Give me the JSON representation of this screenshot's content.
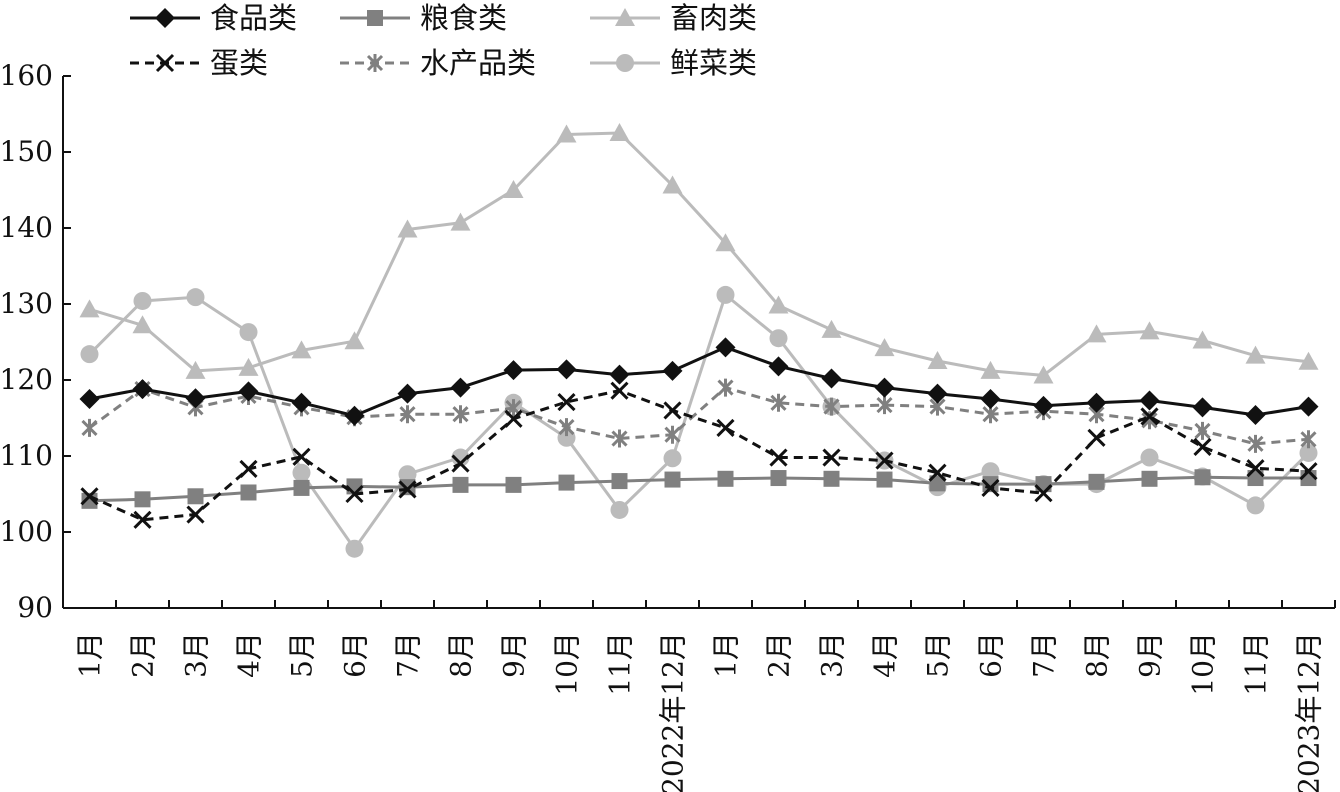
{
  "chart_data": {
    "type": "line",
    "title": "",
    "xlabel": "",
    "ylabel": "",
    "ylim": [
      90,
      160
    ],
    "yticks": [
      90,
      100,
      110,
      120,
      130,
      140,
      150,
      160
    ],
    "grid": false,
    "legend_position": "top-left",
    "categories": [
      "1月",
      "2月",
      "3月",
      "4月",
      "5月",
      "6月",
      "7月",
      "8月",
      "9月",
      "10月",
      "11月",
      "2022年12月",
      "1月",
      "2月",
      "3月",
      "4月",
      "5月",
      "6月",
      "7月",
      "8月",
      "9月",
      "10月",
      "11月",
      "2023年12月"
    ],
    "series": [
      {
        "name": "食品类",
        "color": "#111111",
        "marker": "diamond",
        "dashed": false,
        "values": [
          117.5,
          118.8,
          117.6,
          118.5,
          117.0,
          115.3,
          118.2,
          119.0,
          121.3,
          121.4,
          120.7,
          121.2,
          124.3,
          121.8,
          120.2,
          119.0,
          118.2,
          117.5,
          116.6,
          117.0,
          117.3,
          116.4,
          115.4,
          116.5
        ]
      },
      {
        "name": "粮食类",
        "color": "#808080",
        "marker": "square",
        "dashed": false,
        "values": [
          104.1,
          104.3,
          104.7,
          105.2,
          105.8,
          106.0,
          105.9,
          106.2,
          106.2,
          106.5,
          106.7,
          106.9,
          107.0,
          107.1,
          107.0,
          106.9,
          106.4,
          106.3,
          106.3,
          106.6,
          107.0,
          107.2,
          107.1,
          107.1
        ]
      },
      {
        "name": "畜肉类",
        "color": "#bbbbbb",
        "marker": "triangle",
        "dashed": false,
        "values": [
          129.3,
          127.2,
          121.2,
          121.6,
          123.9,
          125.1,
          139.8,
          140.7,
          145.0,
          152.3,
          152.5,
          145.6,
          138.0,
          129.8,
          126.6,
          124.2,
          122.5,
          121.2,
          120.6,
          126.0,
          126.4,
          125.2,
          123.2,
          122.4
        ]
      },
      {
        "name": "蛋类",
        "color": "#111111",
        "marker": "x",
        "dashed": true,
        "values": [
          104.7,
          101.6,
          102.3,
          108.3,
          109.9,
          105.0,
          105.6,
          109.0,
          114.9,
          117.1,
          118.6,
          116.0,
          113.7,
          109.8,
          109.8,
          109.4,
          107.8,
          105.8,
          105.1,
          112.4,
          115.2,
          111.2,
          108.4,
          108.0
        ]
      },
      {
        "name": "水产品类",
        "color": "#808080",
        "marker": "asterisk",
        "dashed": true,
        "values": [
          113.7,
          118.8,
          116.4,
          117.9,
          116.4,
          115.1,
          115.5,
          115.5,
          116.3,
          113.8,
          112.3,
          112.8,
          119.0,
          117.0,
          116.5,
          116.7,
          116.5,
          115.5,
          115.9,
          115.5,
          114.7,
          113.3,
          111.6,
          112.2
        ]
      },
      {
        "name": "鲜菜类",
        "color": "#bbbbbb",
        "marker": "circle",
        "dashed": false,
        "values": [
          123.4,
          130.4,
          130.9,
          126.3,
          107.8,
          97.8,
          107.6,
          109.8,
          117.0,
          112.4,
          102.9,
          109.7,
          131.2,
          125.5,
          116.5,
          109.4,
          105.9,
          108.0,
          106.3,
          106.3,
          109.8,
          107.3,
          103.5,
          110.4
        ]
      }
    ]
  }
}
